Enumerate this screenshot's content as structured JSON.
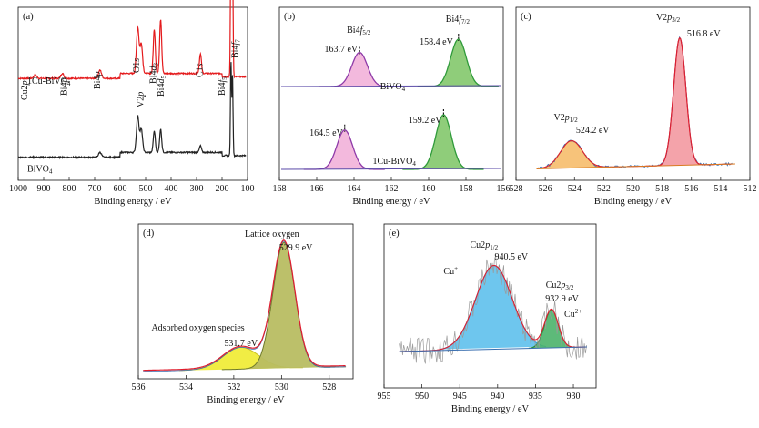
{
  "chart_data": [
    {
      "id": "a",
      "type": "line",
      "panel_label": "(a)",
      "xlabel": "Binding energy / eV",
      "xlim": [
        1000,
        100
      ],
      "xticks": [
        1000,
        900,
        800,
        700,
        600,
        500,
        400,
        300,
        200,
        100
      ],
      "series": [
        {
          "name": "1Cu-BiVO",
          "name_sub": "4",
          "color": "#e41a1c",
          "baseline": 0.62,
          "peaks": [
            [
              932.9,
              0.02,
              6
            ],
            [
              679,
              0.05,
              6
            ],
            [
              827,
              0.03,
              6
            ],
            [
              531,
              0.28,
              5
            ],
            [
              517,
              0.18,
              5
            ],
            [
              466,
              0.27,
              4
            ],
            [
              441,
              0.33,
              4
            ],
            [
              285,
              0.12,
              4
            ],
            [
              165,
              0.95,
              2
            ],
            [
              159,
              0.86,
              2
            ]
          ]
        },
        {
          "name": "BiVO",
          "name_sub": "4",
          "color": "#222222",
          "baseline": 0.14,
          "peaks": [
            [
              679,
              0.03,
              6
            ],
            [
              531,
              0.22,
              5
            ],
            [
              517,
              0.14,
              5
            ],
            [
              466,
              0.13,
              4
            ],
            [
              441,
              0.14,
              4
            ],
            [
              285,
              0.04,
              4
            ],
            [
              165,
              0.58,
              2
            ],
            [
              159,
              0.5,
              2
            ]
          ]
        }
      ],
      "annotations": [
        {
          "text": "Cu2",
          "italic": "p",
          "sub": "",
          "x": 975
        },
        {
          "text": "Bi4",
          "italic": "p",
          "sub": "",
          "x": 820
        },
        {
          "text": "Bi4",
          "italic": "p",
          "sub": "",
          "x": 690
        },
        {
          "text": "O1",
          "italic": "s",
          "sub": "",
          "x": 535
        },
        {
          "text": "V2",
          "italic": "p",
          "sub": "",
          "x": 520
        },
        {
          "text": "Bi4",
          "italic": "d",
          "sub": "3",
          "x": 470
        },
        {
          "text": "Bi4",
          "italic": "d",
          "sub": "5",
          "x": 440
        },
        {
          "text": "C1",
          "italic": "s",
          "sub": "",
          "x": 287
        },
        {
          "text": "Bi4",
          "italic": "f",
          "sub": "5",
          "x": 200
        },
        {
          "text": "Bi4",
          "italic": "f",
          "sub": "7",
          "x": 148
        }
      ]
    },
    {
      "id": "b",
      "type": "line",
      "panel_label": "(b)",
      "xlabel": "Binding energy / eV",
      "xlim": [
        168,
        156
      ],
      "xticks": [
        168,
        166,
        164,
        162,
        160,
        158,
        156
      ],
      "series": [
        {
          "name": "BiVO",
          "name_sub": "4",
          "peaks_eV": [
            163.7,
            158.4
          ],
          "fill_colors": [
            "#f3b9dd",
            "#8fcd7a"
          ],
          "line_colors": [
            "#8e3aa8",
            "#2f9a3a"
          ]
        },
        {
          "name": "1Cu-BiVO",
          "name_sub": "4",
          "peaks_eV": [
            164.5,
            159.2
          ],
          "fill_colors": [
            "#f3b9dd",
            "#8fcd7a"
          ],
          "line_colors": [
            "#8e3aa8",
            "#2f9a3a"
          ]
        }
      ],
      "annotations": [
        {
          "label": "Bi4",
          "italic": "f",
          "sub": "5/2",
          "value": "163.7 eV"
        },
        {
          "label": "Bi4",
          "italic": "f",
          "sub": "7/2",
          "value": "158.4 eV"
        },
        {
          "value": "164.5 eV"
        },
        {
          "value": "159.2 eV"
        }
      ]
    },
    {
      "id": "c",
      "type": "line",
      "panel_label": "(c)",
      "xlabel": "Binding energy / eV",
      "xlim": [
        528,
        512
      ],
      "xticks": [
        528,
        526,
        524,
        522,
        520,
        518,
        516,
        514,
        512
      ],
      "peaks": [
        {
          "label": "V2",
          "italic": "p",
          "sub": "1/2",
          "value": "524.2 eV",
          "center": 524.2,
          "fill": "#f7c37a",
          "line": "#d97b22"
        },
        {
          "label": "V2",
          "italic": "p",
          "sub": "3/2",
          "value": "516.8 eV",
          "center": 516.8,
          "fill": "#f4a3aa",
          "line": "#e01e2e"
        }
      ]
    },
    {
      "id": "d",
      "type": "line",
      "panel_label": "(d)",
      "xlabel": "Binding energy / eV",
      "xlim": [
        536,
        527
      ],
      "xticks": [
        536,
        534,
        532,
        530,
        528
      ],
      "peaks": [
        {
          "label": "Adsorbed oxygen species",
          "value": "531.7 eV",
          "center": 531.7,
          "fill": "#f0ec3a",
          "line": "#c8c020"
        },
        {
          "label": "Lattice oxygen",
          "value": "529.9 eV",
          "center": 529.9,
          "fill": "#b8bd62",
          "line": "#6f7a2a"
        }
      ]
    },
    {
      "id": "e",
      "type": "line",
      "panel_label": "(e)",
      "xlabel": "Binding energy / eV",
      "xlim": [
        955,
        927
      ],
      "xticks": [
        955,
        950,
        945,
        940,
        935,
        930
      ],
      "peaks": [
        {
          "label": "Cu2",
          "italic": "p",
          "sub": "1/2",
          "value": "940.5 eV",
          "species": "Cu",
          "species_sup": "+",
          "center": 940.5,
          "fill": "#5ec0ec",
          "line": "#2aa0e0"
        },
        {
          "label": "Cu2",
          "italic": "p",
          "sub": "3/2",
          "value": "932.9 eV",
          "species": "Cu",
          "species_sup": "2+",
          "center": 932.9,
          "fill": "#4bb26a",
          "line": "#2a8a3f"
        }
      ]
    }
  ],
  "colors": {
    "envelope_red": "#e01e2e",
    "background_blue": "#3a6fb0",
    "noisy_gray": "#9a9a9a"
  }
}
